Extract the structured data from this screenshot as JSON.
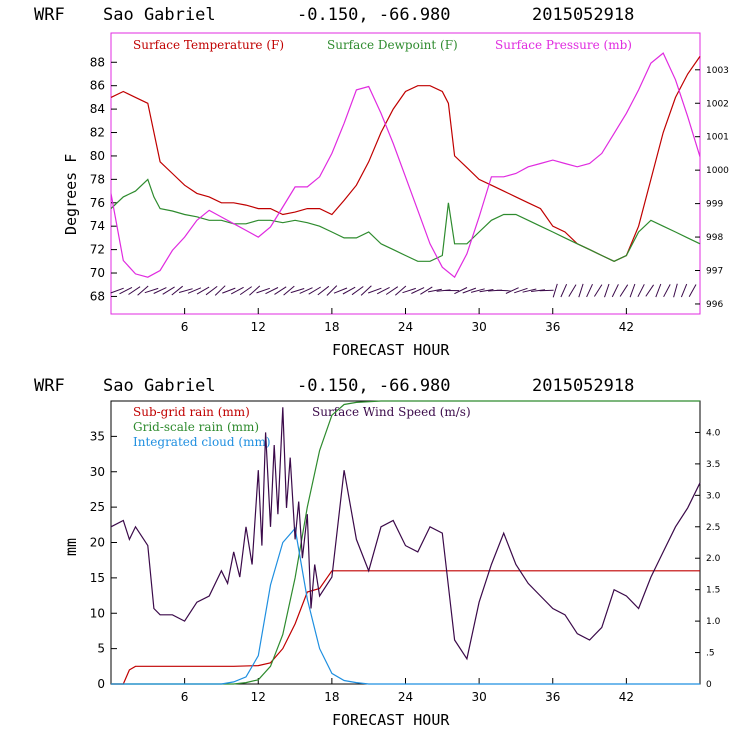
{
  "header": {
    "model": "WRF",
    "station": "Sao Gabriel",
    "coords": "-0.150, -66.980",
    "date": "2015052918"
  },
  "colors": {
    "temperature": "#c00000",
    "dewpoint": "#2e8b2e",
    "pressure": "#e02be0",
    "subgrid": "#c00000",
    "gridscale": "#2e8b2e",
    "cloud": "#1f8fe0",
    "wind": "#3b0a4a"
  },
  "chart_data": [
    {
      "type": "line",
      "title": "WRF Sao Gabriel -0.150, -66.980 2015052918",
      "xlabel": "FORECAST HOUR",
      "ylabel": "Degrees F",
      "xlim": [
        0,
        48
      ],
      "ylim": [
        66.5,
        90.5
      ],
      "y2lim": [
        995.7,
        1004.1
      ],
      "xticks": [
        "6",
        "12",
        "18",
        "24",
        "30",
        "36",
        "42"
      ],
      "yticks": [
        "68",
        "70",
        "72",
        "74",
        "76",
        "78",
        "80",
        "82",
        "84",
        "86",
        "88"
      ],
      "y2ticks": [
        "996",
        "997",
        "998",
        "999",
        "1000",
        "1001",
        "1002",
        "1003"
      ],
      "legend": [
        "Surface Temperature (F)",
        "Surface Dewpoint (F)",
        "Surface Pressure (mb)"
      ],
      "series": [
        {
          "name": "Surface Temperature (F)",
          "axis": "left",
          "x": [
            0,
            1,
            2,
            3,
            4,
            5,
            6,
            7,
            8,
            9,
            10,
            11,
            12,
            13,
            14,
            15,
            16,
            17,
            18,
            19,
            20,
            21,
            22,
            23,
            24,
            25,
            26,
            27,
            27.5,
            28,
            29,
            30,
            31,
            32,
            33,
            34,
            35,
            36,
            37,
            38,
            39,
            40,
            41,
            42,
            43,
            44,
            45,
            46,
            47,
            48
          ],
          "values": [
            85,
            85.5,
            85,
            84.5,
            79.5,
            78.5,
            77.5,
            76.8,
            76.5,
            76,
            76,
            75.8,
            75.5,
            75.5,
            75,
            75.2,
            75.5,
            75.5,
            75,
            76.2,
            77.5,
            79.5,
            82,
            84,
            85.5,
            86,
            86,
            85.5,
            84.5,
            80,
            79,
            78,
            77.5,
            77,
            76.5,
            76,
            75.5,
            74,
            73.5,
            72.5,
            72,
            71.5,
            71,
            71.5,
            74,
            78,
            82,
            85,
            87,
            88.5
          ]
        },
        {
          "name": "Surface Dewpoint (F)",
          "axis": "left",
          "x": [
            0,
            1,
            2,
            3,
            3.5,
            4,
            5,
            6,
            7,
            8,
            9,
            10,
            11,
            12,
            13,
            14,
            15,
            16,
            17,
            18,
            19,
            20,
            21,
            22,
            23,
            24,
            25,
            26,
            27,
            27.5,
            28,
            29,
            30,
            31,
            32,
            33,
            34,
            35,
            36,
            37,
            38,
            39,
            40,
            41,
            42,
            43,
            44,
            45,
            46,
            47,
            48
          ],
          "values": [
            75.5,
            76.5,
            77,
            78,
            76.5,
            75.5,
            75.3,
            75,
            74.8,
            74.5,
            74.5,
            74.2,
            74.2,
            74.5,
            74.5,
            74.3,
            74.5,
            74.3,
            74,
            73.5,
            73,
            73,
            73.5,
            72.5,
            72,
            71.5,
            71,
            71,
            71.5,
            76,
            72.5,
            72.5,
            73.5,
            74.5,
            75,
            75,
            74.5,
            74,
            73.5,
            73,
            72.5,
            72,
            71.5,
            71,
            71.5,
            73.5,
            74.5,
            74,
            73.5,
            73,
            72.5
          ]
        },
        {
          "name": "Surface Pressure (mb)",
          "axis": "right",
          "x": [
            0,
            1,
            2,
            3,
            4,
            5,
            6,
            7,
            8,
            9,
            10,
            11,
            12,
            13,
            14,
            15,
            16,
            17,
            18,
            19,
            20,
            21,
            22,
            23,
            24,
            25,
            26,
            27,
            28,
            29,
            30,
            31,
            32,
            33,
            34,
            35,
            36,
            37,
            38,
            39,
            40,
            41,
            42,
            43,
            44,
            45,
            46,
            47,
            48
          ],
          "values": [
            999.3,
            997.3,
            996.9,
            996.8,
            997,
            997.6,
            998,
            998.5,
            998.8,
            998.6,
            998.4,
            998.2,
            998,
            998.3,
            998.9,
            999.5,
            999.5,
            999.8,
            1000.5,
            1001.4,
            1002.4,
            1002.5,
            1001.7,
            1000.8,
            999.8,
            998.8,
            997.8,
            997.1,
            996.8,
            997.5,
            998.6,
            999.8,
            999.8,
            999.9,
            1000.1,
            1000.2,
            1000.3,
            1000.2,
            1000.1,
            1000.2,
            1000.5,
            1001.1,
            1001.7,
            1002.4,
            1003.2,
            1003.5,
            1002.7,
            1001.6,
            1000.4
          ]
        }
      ],
      "wind_barbs": "row of wind barbs along the bottom at approximately 68.5 F"
    },
    {
      "type": "line",
      "title": "WRF Sao Gabriel -0.150, -66.980 2015052918",
      "xlabel": "FORECAST HOUR",
      "ylabel": "mm",
      "xlim": [
        0,
        48
      ],
      "ylim": [
        0,
        40
      ],
      "y2lim": [
        0,
        4.5
      ],
      "xticks": [
        "6",
        "12",
        "18",
        "24",
        "30",
        "36",
        "42"
      ],
      "yticks": [
        "0",
        "5",
        "10",
        "15",
        "20",
        "25",
        "30",
        "35"
      ],
      "y2ticks": [
        "0",
        ".5",
        "1.0",
        "1.5",
        "2.0",
        "2.5",
        "3.0",
        "3.5",
        "4.0"
      ],
      "legend": [
        "Sub-grid rain (mm)",
        "Grid-scale rain (mm)",
        "Integrated cloud (mm)",
        "Surface Wind Speed (m/s)"
      ],
      "series": [
        {
          "name": "Sub-grid rain (mm)",
          "axis": "left",
          "x": [
            0,
            1,
            1.5,
            2,
            10,
            12,
            13,
            14,
            15,
            16,
            17,
            18,
            24,
            30,
            36,
            42,
            48
          ],
          "values": [
            0,
            0,
            2,
            2.5,
            2.5,
            2.6,
            3,
            5,
            8.5,
            13,
            13.5,
            16,
            16,
            16,
            16,
            16,
            16
          ]
        },
        {
          "name": "Grid-scale rain (mm)",
          "axis": "left",
          "x": [
            0,
            10,
            11,
            12,
            13,
            14,
            15,
            16,
            17,
            18,
            19,
            20,
            22,
            24,
            30,
            36,
            42,
            48
          ],
          "values": [
            0,
            0,
            0.2,
            0.6,
            2.5,
            7,
            15,
            25,
            33,
            38,
            39.5,
            39.8,
            40,
            40,
            40,
            40,
            40,
            40
          ]
        },
        {
          "name": "Integrated cloud (mm)",
          "axis": "left",
          "x": [
            0,
            9,
            10,
            11,
            12,
            13,
            14,
            15,
            16,
            17,
            18,
            19,
            20,
            21,
            48
          ],
          "values": [
            0,
            0,
            0.3,
            1,
            4,
            14,
            20,
            22,
            12,
            5,
            1.5,
            0.5,
            0.2,
            0,
            0
          ]
        },
        {
          "name": "Surface Wind Speed (m/s)",
          "axis": "right",
          "x": [
            0,
            1,
            1.5,
            2,
            3,
            3.5,
            4,
            5,
            6,
            7,
            8,
            9,
            9.5,
            10,
            10.5,
            11,
            11.5,
            12,
            12.3,
            12.6,
            13,
            13.3,
            13.6,
            14,
            14.3,
            14.6,
            15,
            15.3,
            15.6,
            16,
            16.3,
            16.6,
            17,
            18,
            19,
            20,
            21,
            22,
            23,
            24,
            25,
            26,
            27,
            28,
            29,
            30,
            31,
            32,
            33,
            34,
            35,
            36,
            37,
            38,
            39,
            40,
            41,
            42,
            43,
            44,
            45,
            46,
            47,
            48
          ],
          "values": [
            2.5,
            2.6,
            2.3,
            2.5,
            2.2,
            1.2,
            1.1,
            1.1,
            1,
            1.3,
            1.4,
            1.8,
            1.6,
            2.1,
            1.7,
            2.5,
            1.9,
            3.4,
            2.2,
            4,
            2.5,
            3.8,
            2.7,
            4.4,
            2.8,
            3.6,
            2.3,
            2.9,
            2,
            2.7,
            1.2,
            1.9,
            1.4,
            1.7,
            3.4,
            2.3,
            1.8,
            2.5,
            2.6,
            2.2,
            2.1,
            2.5,
            2.4,
            0.7,
            0.4,
            1.3,
            1.9,
            2.4,
            1.9,
            1.6,
            1.4,
            1.2,
            1.1,
            0.8,
            0.7,
            0.9,
            1.5,
            1.4,
            1.2,
            1.7,
            2.1,
            2.5,
            2.8,
            3.2
          ]
        }
      ]
    }
  ]
}
